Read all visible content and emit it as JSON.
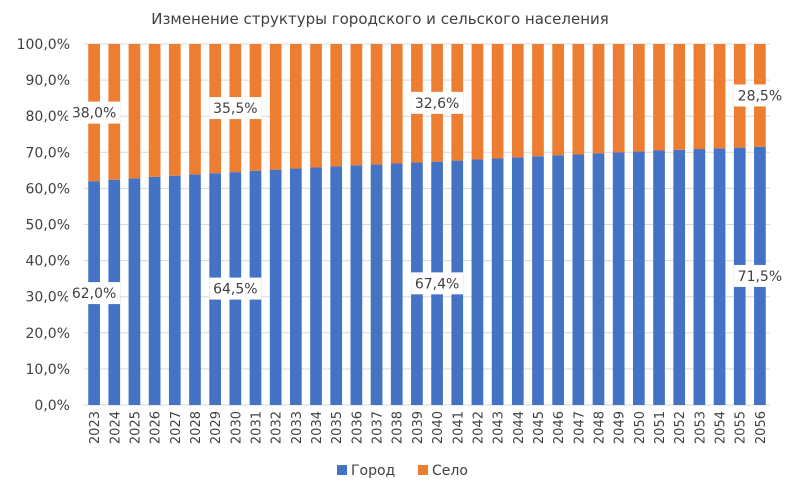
{
  "chart_data": {
    "type": "bar",
    "stacked": true,
    "percent_stacked": true,
    "title": "Изменение структуры городского и сельского населения",
    "xlabel": "",
    "ylabel": "",
    "ylim": [
      0,
      100
    ],
    "yticks": [
      "0,0%",
      "10,0%",
      "20,0%",
      "30,0%",
      "40,0%",
      "50,0%",
      "60,0%",
      "70,0%",
      "80,0%",
      "90,0%",
      "100,0%"
    ],
    "grid": true,
    "legend_position": "bottom",
    "categories": [
      "2023",
      "2024",
      "2025",
      "2026",
      "2027",
      "2028",
      "2029",
      "2030",
      "2031",
      "2032",
      "2033",
      "2034",
      "2035",
      "2036",
      "2037",
      "2038",
      "2039",
      "2040",
      "2041",
      "2042",
      "2043",
      "2044",
      "2045",
      "2046",
      "2047",
      "2048",
      "2049",
      "2050",
      "2051",
      "2052",
      "2053",
      "2054",
      "2055",
      "2056"
    ],
    "series": [
      {
        "name": "Город",
        "color": "#4472C4",
        "values": [
          62.0,
          62.4,
          62.8,
          63.2,
          63.5,
          63.9,
          64.2,
          64.5,
          64.9,
          65.2,
          65.5,
          65.8,
          66.1,
          66.4,
          66.6,
          66.9,
          67.2,
          67.4,
          67.7,
          68.0,
          68.3,
          68.6,
          68.9,
          69.2,
          69.4,
          69.7,
          70.0,
          70.2,
          70.5,
          70.7,
          70.9,
          71.1,
          71.3,
          71.5
        ]
      },
      {
        "name": "Село",
        "color": "#ED7D31",
        "values": [
          38.0,
          37.6,
          37.2,
          36.8,
          36.5,
          36.1,
          35.8,
          35.5,
          35.1,
          34.8,
          34.5,
          34.2,
          33.9,
          33.6,
          33.4,
          33.1,
          32.8,
          32.6,
          32.3,
          32.0,
          31.7,
          31.4,
          31.1,
          30.8,
          30.6,
          30.3,
          30.0,
          29.8,
          29.5,
          29.3,
          29.1,
          28.9,
          28.7,
          28.5
        ]
      }
    ],
    "data_labels": [
      {
        "series": "Город",
        "category": "2023",
        "text": "62,0%"
      },
      {
        "series": "Село",
        "category": "2023",
        "text": "38,0%"
      },
      {
        "series": "Город",
        "category": "2030",
        "text": "64,5%"
      },
      {
        "series": "Село",
        "category": "2030",
        "text": "35,5%"
      },
      {
        "series": "Город",
        "category": "2040",
        "text": "67,4%"
      },
      {
        "series": "Село",
        "category": "2040",
        "text": "32,6%"
      },
      {
        "series": "Город",
        "category": "2056",
        "text": "71,5%"
      },
      {
        "series": "Село",
        "category": "2056",
        "text": "28,5%"
      }
    ]
  },
  "legend": {
    "items": [
      {
        "label": "Город",
        "color": "#4472C4"
      },
      {
        "label": "Село",
        "color": "#ED7D31"
      }
    ]
  }
}
